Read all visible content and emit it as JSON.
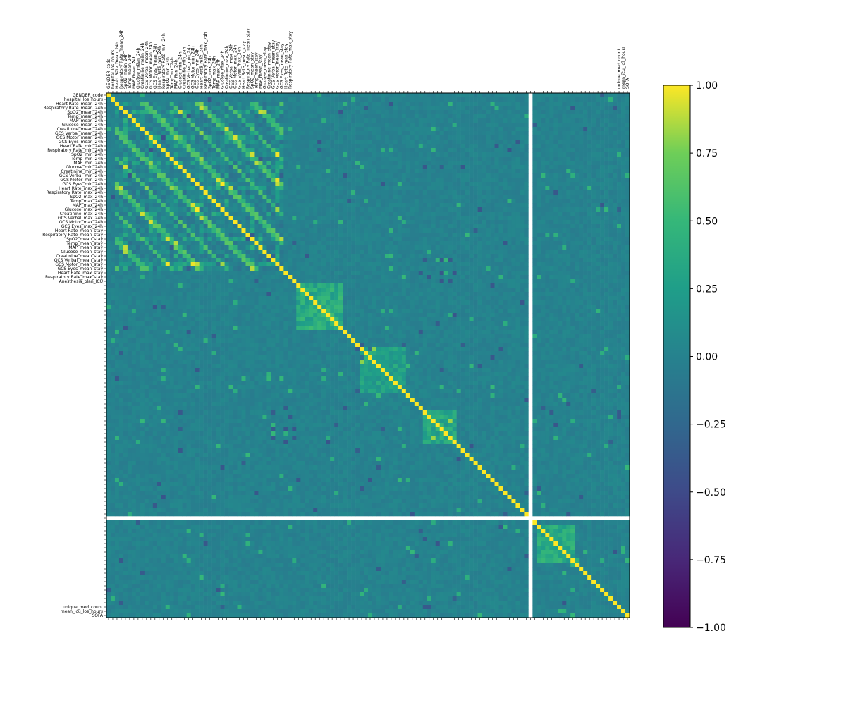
{
  "chart_data": {
    "type": "heatmap",
    "title": "",
    "xlabel": "",
    "ylabel": "",
    "n_rows": 124,
    "n_cols": 124,
    "value_range": [
      -1.0,
      1.0
    ],
    "colormap": "viridis",
    "colorbar": {
      "ticks": [
        1.0,
        0.75,
        0.5,
        0.25,
        0.0,
        -0.25,
        -0.5,
        -0.75,
        -1.0
      ],
      "tick_labels": [
        "1.00",
        "0.75",
        "0.50",
        "0.25",
        "0.00",
        "−0.25",
        "−0.50",
        "−0.75",
        "−1.00"
      ]
    },
    "diagonal_value": 1.0,
    "background_value": 0.0,
    "missing_row_index": 100,
    "missing_col_index": 100,
    "row_labels": [
      "GENDER_code",
      "hospital_los_hours",
      "Heart Rate_mean_24h",
      "Respiratory Rate_mean_24h",
      "SpO2_mean_24h",
      "Temp_mean_24h",
      "MAP_mean_24h",
      "Glucose_mean_24h",
      "Creatinine_mean_24h",
      "GCS Verbal_mean_24h",
      "GCS Motor_mean_24h",
      "GCS Eyes_mean_24h",
      "Heart Rate_min_24h",
      "Respiratory Rate_min_24h",
      "SpO2_min_24h",
      "Temp_min_24h",
      "MAP_min_24h",
      "Glucose_min_24h",
      "Creatinine_min_24h",
      "GCS Verbal_min_24h",
      "GCS Motor_min_24h",
      "GCS Eyes_min_24h",
      "Heart Rate_max_24h",
      "Respiratory Rate_max_24h",
      "SpO2_max_24h",
      "Temp_max_24h",
      "MAP_max_24h",
      "Glucose_max_24h",
      "Creatinine_max_24h",
      "GCS Verbal_max_24h",
      "GCS Motor_max_24h",
      "GCS Eyes_max_24h",
      "Heart Rate_mean_stay",
      "Respiratory Rate_mean_stay",
      "SpO2_mean_stay",
      "Temp_mean_stay",
      "MAP_mean_stay",
      "Glucose_mean_stay",
      "Creatinine_mean_stay",
      "GCS Verbal_mean_stay",
      "GCS Motor_mean_stay",
      "GCS Eyes_mean_stay",
      "Heart Rate_max_stay",
      "Respiratory Rate_max_stay",
      "Anesthesia_plan_ICU"
    ],
    "col_labels": [
      "GENDER_code",
      "hospital_los_hours",
      "Heart Rate_mean_24h",
      "Respiratory Rate_mean_24h",
      "SpO2_mean_24h",
      "Temp_mean_24h",
      "MAP_mean_24h",
      "Glucose_mean_24h",
      "Creatinine_mean_24h",
      "GCS Verbal_mean_24h",
      "GCS Motor_mean_24h",
      "GCS Eyes_mean_24h",
      "Heart Rate_min_24h",
      "Respiratory Rate_min_24h",
      "SpO2_min_24h",
      "Temp_min_24h",
      "MAP_min_24h",
      "Glucose_min_24h",
      "Creatinine_min_24h",
      "GCS Verbal_min_24h",
      "GCS Motor_min_24h",
      "GCS Eyes_min_24h",
      "Heart Rate_max_24h",
      "Respiratory Rate_max_24h",
      "SpO2_max_24h",
      "Temp_max_24h",
      "MAP_max_24h",
      "Glucose_max_24h",
      "Creatinine_max_24h",
      "GCS Verbal_max_24h",
      "GCS Motor_max_24h",
      "GCS Eyes_max_24h",
      "Heart Rate_mean_stay",
      "Respiratory Rate_mean_stay",
      "SpO2_mean_stay",
      "Temp_mean_stay",
      "MAP_mean_stay",
      "Glucose_mean_stay",
      "Creatinine_mean_stay",
      "GCS Verbal_mean_stay",
      "GCS Motor_mean_stay",
      "GCS Eyes_mean_stay",
      "Heart Rate_max_stay",
      "Respiratory Rate_max_stay",
      "unique_med_count",
      "mean_icu_los_hours",
      "SOFA"
    ],
    "row_labels_tail": [
      "unique_med_count",
      "mean_icu_los_hours",
      "SOFA"
    ],
    "notable_blocks": [
      {
        "rows": [
          2,
          41
        ],
        "cols": [
          2,
          41
        ],
        "pattern": "periodic_bands",
        "period": 6.5,
        "strength": 0.7
      },
      {
        "rows": [
          45,
          55
        ],
        "cols": [
          45,
          55
        ],
        "strength": 0.55
      },
      {
        "rows": [
          60,
          70
        ],
        "cols": [
          60,
          70
        ],
        "strength": 0.4
      },
      {
        "rows": [
          75,
          82
        ],
        "cols": [
          75,
          82
        ],
        "strength": 0.45
      },
      {
        "rows": [
          102,
          110
        ],
        "cols": [
          102,
          110
        ],
        "strength": 0.5
      }
    ]
  }
}
